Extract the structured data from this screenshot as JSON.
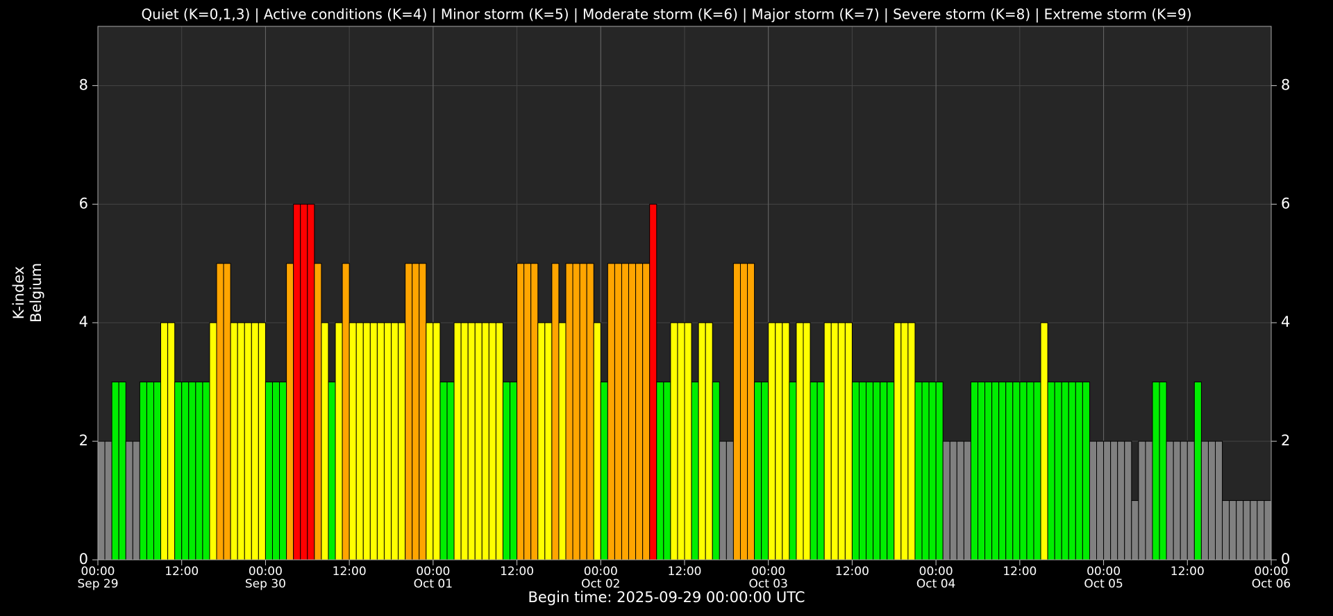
{
  "chart_data": {
    "type": "bar",
    "title": "Quiet (K=0,1,3) | Active conditions (K=4) | Minor storm (K=5) | Moderate storm (K=6) | Major storm (K=7) | Severe storm (K=8) | Extreme storm (K=9)",
    "ylabel": [
      "K-index",
      "Belgium"
    ],
    "xlabel": "Begin time: 2025-09-29 00:00:00 UTC",
    "values": [
      2,
      2,
      3,
      3,
      2,
      2,
      3,
      3,
      3,
      4,
      4,
      3,
      3,
      3,
      3,
      3,
      4,
      5,
      5,
      4,
      4,
      4,
      4,
      4,
      3,
      3,
      3,
      5,
      6,
      6,
      6,
      5,
      4,
      3,
      4,
      5,
      4,
      4,
      4,
      4,
      4,
      4,
      4,
      4,
      5,
      5,
      5,
      4,
      4,
      3,
      3,
      4,
      4,
      4,
      4,
      4,
      4,
      4,
      3,
      3,
      5,
      5,
      5,
      4,
      4,
      5,
      4,
      5,
      5,
      5,
      5,
      4,
      3,
      5,
      5,
      5,
      5,
      5,
      5,
      6,
      3,
      3,
      4,
      4,
      4,
      3,
      4,
      4,
      3,
      2,
      2,
      5,
      5,
      5,
      3,
      3,
      4,
      4,
      4,
      3,
      4,
      4,
      3,
      3,
      4,
      4,
      4,
      4,
      3,
      3,
      3,
      3,
      3,
      3,
      4,
      4,
      4,
      3,
      3,
      3,
      3,
      2,
      2,
      2,
      2,
      3,
      3,
      3,
      3,
      3,
      3,
      3,
      3,
      3,
      3,
      4,
      3,
      3,
      3,
      3,
      3,
      3,
      2,
      2,
      2,
      2,
      2,
      2,
      1,
      2,
      2,
      3,
      3,
      2,
      2,
      2,
      2,
      3,
      2,
      2,
      2,
      1,
      1,
      1,
      1,
      1,
      1,
      1
    ],
    "level_colors": [
      "#808080",
      "#808080",
      "#808080",
      "#00ee00",
      "#ffff00",
      "#ffa500",
      "#ff0000"
    ],
    "xlim": [
      0,
      168
    ],
    "xticks": [
      {
        "value": 0,
        "label": "00:00"
      },
      {
        "value": 12,
        "label": "12:00"
      },
      {
        "value": 24,
        "label": "00:00"
      },
      {
        "value": 36,
        "label": "12:00"
      },
      {
        "value": 48,
        "label": "00:00"
      },
      {
        "value": 60,
        "label": "12:00"
      },
      {
        "value": 72,
        "label": "00:00"
      },
      {
        "value": 84,
        "label": "12:00"
      },
      {
        "value": 96,
        "label": "00:00"
      },
      {
        "value": 108,
        "label": "12:00"
      },
      {
        "value": 120,
        "label": "00:00"
      },
      {
        "value": 132,
        "label": "12:00"
      },
      {
        "value": 144,
        "label": "00:00"
      },
      {
        "value": 156,
        "label": "12:00"
      },
      {
        "value": 168,
        "label": "00:00"
      }
    ],
    "xdates": [
      {
        "value": 0,
        "label": "Sep 29"
      },
      {
        "value": 24,
        "label": "Sep 30"
      },
      {
        "value": 48,
        "label": "Oct 01"
      },
      {
        "value": 72,
        "label": "Oct 02"
      },
      {
        "value": 96,
        "label": "Oct 03"
      },
      {
        "value": 120,
        "label": "Oct 04"
      },
      {
        "value": 144,
        "label": "Oct 05"
      },
      {
        "value": 168,
        "label": "Oct 06"
      }
    ],
    "ylim": [
      0,
      9
    ],
    "yticks": [
      0,
      2,
      4,
      6,
      8
    ],
    "grid": true
  }
}
